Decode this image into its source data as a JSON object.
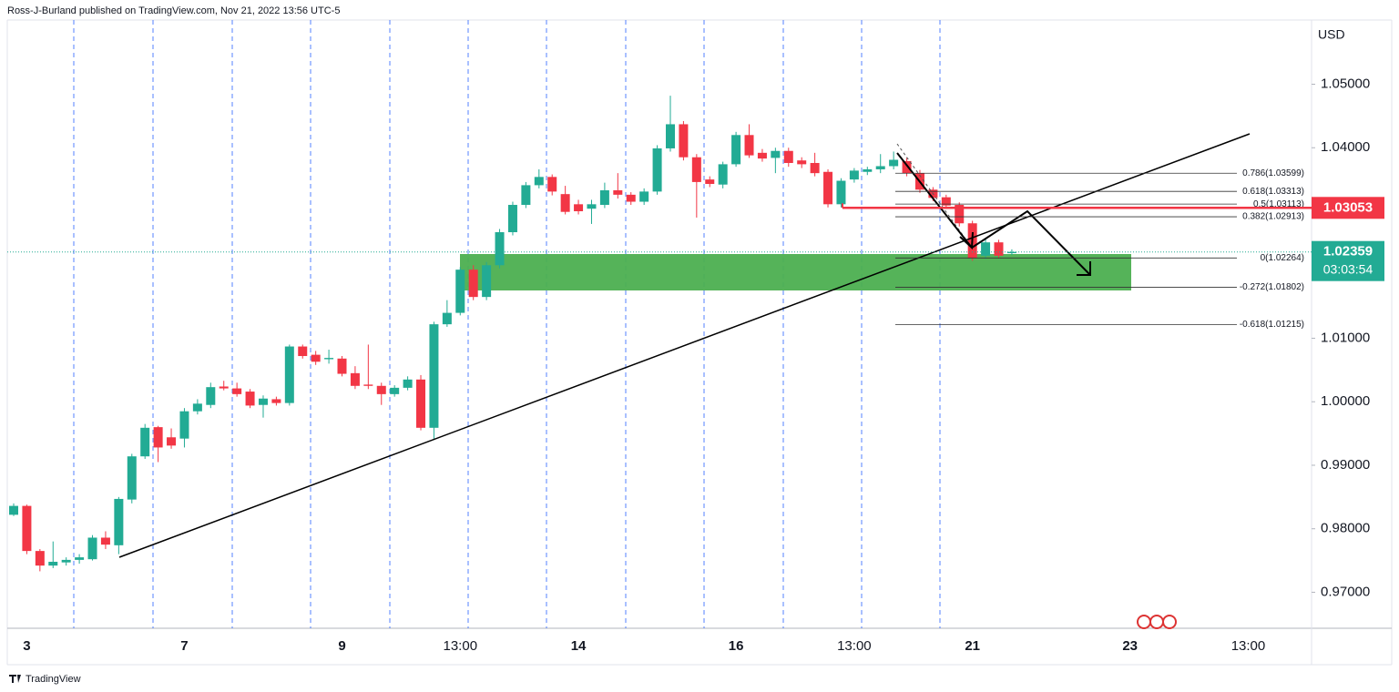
{
  "attribution": "Ross-J-Burland published on TradingView.com, Nov 21, 2022 13:56 UTC-5",
  "brand": "TradingView",
  "chart_data": {
    "type": "candlestick",
    "currency": "USD",
    "up_color": "#22ab94",
    "down_color": "#f23645",
    "ylim": [
      0.96433,
      1.06011
    ],
    "yticks": [
      {
        "value": 1.05,
        "label": "1.05000"
      },
      {
        "value": 1.04,
        "label": "1.04000"
      },
      {
        "value": 1.01,
        "label": "1.01000"
      },
      {
        "value": 1.0,
        "label": "1.00000"
      },
      {
        "value": 0.99,
        "label": "0.99000"
      },
      {
        "value": 0.98,
        "label": "0.98000"
      },
      {
        "value": 0.97,
        "label": "0.97000"
      }
    ],
    "categories": [
      null,
      "3",
      null,
      null,
      null,
      null,
      null,
      null,
      null,
      null,
      null,
      null,
      null,
      "7",
      null,
      null,
      null,
      null,
      null,
      null,
      null,
      null,
      null,
      null,
      null,
      "9",
      null,
      null,
      null,
      null,
      null,
      null,
      null,
      null,
      "13:00",
      null,
      null,
      null,
      null,
      null,
      null,
      null,
      null,
      "14",
      null,
      null,
      null,
      null,
      null,
      null,
      null,
      null,
      null,
      null,
      null,
      "16",
      null,
      null,
      null,
      null,
      null,
      null,
      null,
      null,
      "13:00",
      null,
      null,
      null,
      null,
      null,
      null,
      null,
      null,
      "21",
      null,
      null,
      null,
      null,
      null,
      null,
      null,
      null,
      null,
      null,
      null,
      "23",
      null,
      null,
      null,
      null,
      null,
      null,
      null,
      null,
      "13:00"
    ],
    "ohlc": [
      [
        0.9822,
        0.984,
        0.982,
        0.9836
      ],
      [
        0.9836,
        0.9838,
        0.976,
        0.9765
      ],
      [
        0.9765,
        0.9768,
        0.9733,
        0.9742
      ],
      [
        0.9742,
        0.978,
        0.9738,
        0.9748
      ],
      [
        0.9747,
        0.9755,
        0.9742,
        0.9751
      ],
      [
        0.9751,
        0.976,
        0.9745,
        0.9755
      ],
      [
        0.9752,
        0.979,
        0.975,
        0.9786
      ],
      [
        0.9786,
        0.9796,
        0.9768,
        0.9775
      ],
      [
        0.9774,
        0.985,
        0.976,
        0.9847
      ],
      [
        0.9846,
        0.9918,
        0.984,
        0.9914
      ],
      [
        0.9914,
        0.9965,
        0.991,
        0.9959
      ],
      [
        0.996,
        0.9962,
        0.9905,
        0.9928
      ],
      [
        0.9944,
        0.9958,
        0.9926,
        0.9931
      ],
      [
        0.9942,
        0.999,
        0.9928,
        0.9985
      ],
      [
        0.9985,
        1.0004,
        0.998,
        0.9997
      ],
      [
        0.9995,
        1.003,
        0.999,
        1.0023
      ],
      [
        1.0024,
        1.0033,
        1.0018,
        1.0021
      ],
      [
        1.0021,
        1.003,
        1.0008,
        1.0012
      ],
      [
        1.0016,
        1.002,
        0.999,
        0.9994
      ],
      [
        0.9995,
        1.001,
        0.9975,
        1.0005
      ],
      [
        1.0004,
        1.0008,
        0.9994,
        0.9998
      ],
      [
        0.9998,
        1.009,
        0.9994,
        1.0087
      ],
      [
        1.0087,
        1.009,
        1.0068,
        1.0072
      ],
      [
        1.0074,
        1.008,
        1.0058,
        1.0063
      ],
      [
        1.0067,
        1.0082,
        1.006,
        1.0069
      ],
      [
        1.0068,
        1.0072,
        1.004,
        1.0044
      ],
      [
        1.0045,
        1.0056,
        1.002,
        1.0025
      ],
      [
        1.0027,
        1.009,
        1.002,
        1.0025
      ],
      [
        1.0025,
        1.003,
        0.9995,
        1.0012
      ],
      [
        1.0012,
        1.0026,
        1.0008,
        1.0022
      ],
      [
        1.0022,
        1.004,
        1.0018,
        1.0035
      ],
      [
        1.0035,
        1.0042,
        0.9955,
        0.9959
      ],
      [
        0.9959,
        1.0126,
        0.994,
        1.0122
      ],
      [
        1.0122,
        1.016,
        1.0118,
        1.014
      ],
      [
        1.014,
        1.0212,
        1.0136,
        1.0208
      ],
      [
        1.0208,
        1.0215,
        1.016,
        1.0165
      ],
      [
        1.0165,
        1.022,
        1.016,
        1.0215
      ],
      [
        1.0215,
        1.0272,
        1.021,
        1.0267
      ],
      [
        1.0267,
        1.0315,
        1.0262,
        1.031
      ],
      [
        1.031,
        1.0346,
        1.0305,
        1.0341
      ],
      [
        1.0341,
        1.0366,
        1.0336,
        1.0354
      ],
      [
        1.0354,
        1.0358,
        1.0325,
        1.0331
      ],
      [
        1.0327,
        1.034,
        1.0295,
        1.0299
      ],
      [
        1.0311,
        1.0318,
        1.0295,
        1.03
      ],
      [
        1.0304,
        1.0318,
        1.028,
        1.0311
      ],
      [
        1.031,
        1.0345,
        1.0305,
        1.0333
      ],
      [
        1.0333,
        1.036,
        1.032,
        1.0326
      ],
      [
        1.0326,
        1.033,
        1.031,
        1.0315
      ],
      [
        1.0315,
        1.0336,
        1.031,
        1.0331
      ],
      [
        1.0331,
        1.0404,
        1.0326,
        1.0399
      ],
      [
        1.0399,
        1.0482,
        1.0394,
        1.0437
      ],
      [
        1.0437,
        1.0442,
        1.038,
        1.0385
      ],
      [
        1.0385,
        1.039,
        1.029,
        1.0346
      ],
      [
        1.035,
        1.0355,
        1.0338,
        1.0343
      ],
      [
        1.0342,
        1.0378,
        1.0336,
        1.0374
      ],
      [
        1.0374,
        1.0425,
        1.037,
        1.042
      ],
      [
        1.042,
        1.0437,
        1.0384,
        1.0388
      ],
      [
        1.0392,
        1.0398,
        1.0378,
        1.0383
      ],
      [
        1.0384,
        1.04,
        1.036,
        1.0395
      ],
      [
        1.0395,
        1.04,
        1.037,
        1.0376
      ],
      [
        1.038,
        1.0385,
        1.0368,
        1.0374
      ],
      [
        1.0376,
        1.0392,
        1.0355,
        1.036
      ],
      [
        1.0362,
        1.0366,
        1.0306,
        1.0311
      ],
      [
        1.0311,
        1.0352,
        1.0306,
        1.0348
      ],
      [
        1.035,
        1.0368,
        1.0345,
        1.0364
      ],
      [
        1.0362,
        1.037,
        1.0357,
        1.0366
      ],
      [
        1.0366,
        1.039,
        1.036,
        1.0371
      ],
      [
        1.0371,
        1.0394,
        1.0366,
        1.0381
      ],
      [
        1.0379,
        1.0384,
        1.0355,
        1.036
      ],
      [
        1.036,
        1.0365,
        1.0329,
        1.0334
      ],
      [
        1.0334,
        1.0338,
        1.0316,
        1.0321
      ],
      [
        1.0322,
        1.0326,
        1.0304,
        1.0309
      ],
      [
        1.031,
        1.0314,
        1.0276,
        1.0281
      ],
      [
        1.0281,
        1.0285,
        1.0222,
        1.0226
      ],
      [
        1.023,
        1.0256,
        1.0225,
        1.0251
      ],
      [
        1.0251,
        1.0255,
        1.0226,
        1.023
      ],
      [
        1.0234,
        1.024,
        1.0231,
        1.0236
      ],
      null,
      null,
      null,
      null,
      null,
      null,
      null,
      null,
      null,
      null,
      null,
      null,
      null,
      null,
      null,
      null,
      null,
      null
    ],
    "fib_levels": [
      {
        "value": 1.03599,
        "label": "0.786(1.03599)"
      },
      {
        "value": 1.03313,
        "label": "0.618(1.03313)"
      },
      {
        "value": 1.03113,
        "label": "0.5(1.03113)"
      },
      {
        "value": 1.02913,
        "label": "0.382(1.02913)"
      },
      {
        "value": 1.02264,
        "label": "0(1.02264)"
      },
      {
        "value": 1.01802,
        "label": "-0.272(1.01802)"
      },
      {
        "value": 1.01215,
        "label": "-0.618(1.01215)"
      }
    ],
    "price_line": {
      "value": 1.03053,
      "label": "1.03053",
      "color": "#f23645"
    },
    "last_price": {
      "value": 1.02359,
      "label": "1.02359",
      "countdown": "03:03:54",
      "color": "#22ab94"
    }
  }
}
